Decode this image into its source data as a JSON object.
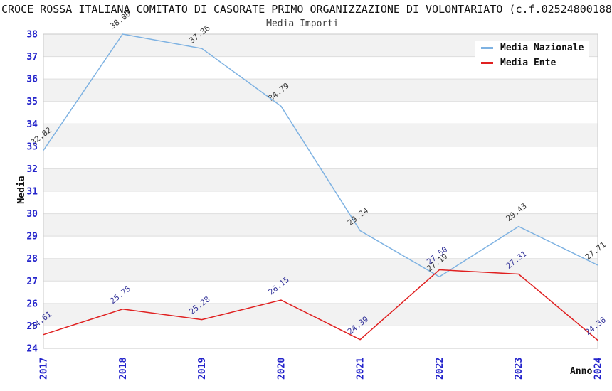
{
  "chart_data": {
    "type": "line",
    "title": "CROCE ROSSA ITALIANA COMITATO DI CASORATE PRIMO ORGANIZZAZIONE DI VOLONTARIATO (c.f.02524800188",
    "subtitle": "Media Importi",
    "xlabel": "Anno",
    "ylabel": "Media",
    "categories": [
      "2017",
      "2018",
      "2019",
      "2020",
      "2021",
      "2022",
      "2023",
      "2024"
    ],
    "series": [
      {
        "name": "Media Nazionale",
        "color": "#7EB2E2",
        "label_color": "#3a3a3a",
        "values": [
          32.82,
          38.0,
          37.36,
          34.79,
          29.24,
          27.19,
          29.43,
          27.71
        ]
      },
      {
        "name": "Media Ente",
        "color": "#E02020",
        "label_color": "#333399",
        "values": [
          24.61,
          25.75,
          25.28,
          26.15,
          24.39,
          27.5,
          27.31,
          24.36
        ]
      }
    ],
    "ylim": [
      24,
      38
    ],
    "ytick_step": 1,
    "yticks": [
      24,
      25,
      26,
      27,
      28,
      29,
      30,
      31,
      32,
      33,
      34,
      35,
      36,
      37,
      38
    ],
    "grid": "horizontal-alternating-bands",
    "band_color": "#f2f2f2",
    "gridline_color": "#dedede",
    "spine_color": "#c9c9c9",
    "tick_label_color": "#2424CB",
    "legend_position": "top-right",
    "data_label_decimals": 2
  }
}
